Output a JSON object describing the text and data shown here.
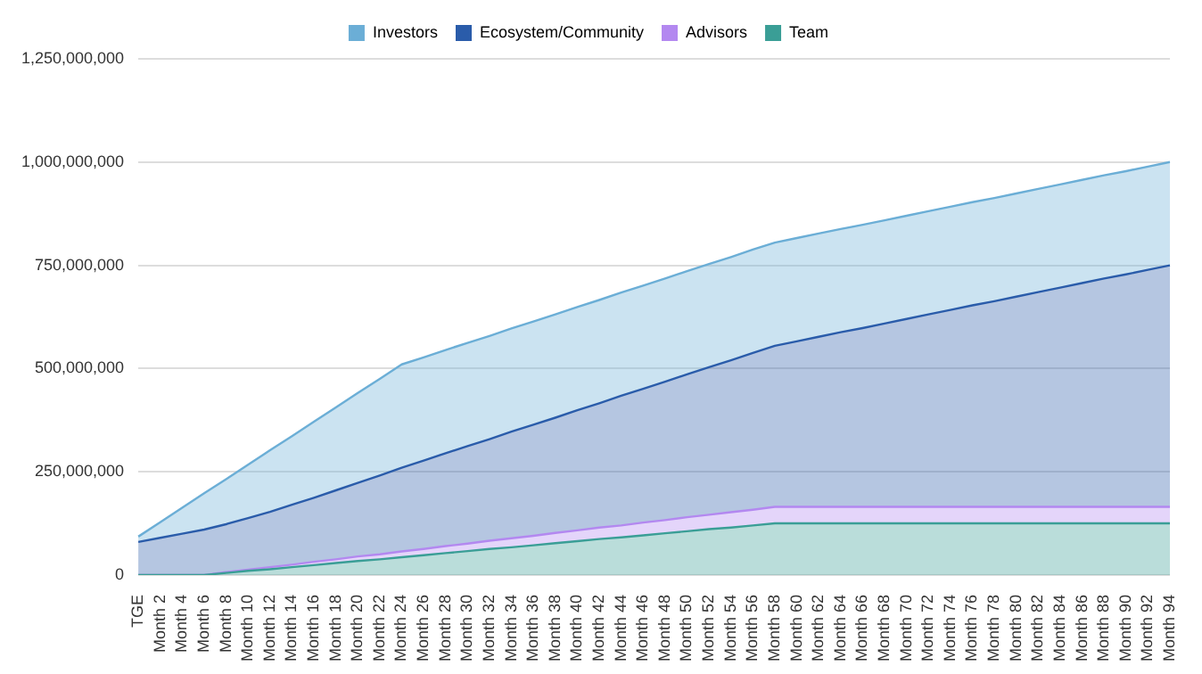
{
  "chart_data": {
    "type": "area",
    "stacked": true,
    "legend": "top",
    "grid": "y",
    "categories": [
      "TGE",
      "Month 2",
      "Month 4",
      "Month 6",
      "Month 8",
      "Month 10",
      "Month 12",
      "Month 14",
      "Month 16",
      "Month 18",
      "Month 20",
      "Month 22",
      "Month 24",
      "Month 26",
      "Month 28",
      "Month 30",
      "Month 32",
      "Month 34",
      "Month 36",
      "Month 38",
      "Month 40",
      "Month 42",
      "Month 44",
      "Month 46",
      "Month 48",
      "Month 50",
      "Month 52",
      "Month 54",
      "Month 56",
      "Month 58",
      "Month 60",
      "Month 62",
      "Month 64",
      "Month 66",
      "Month 68",
      "Month 70",
      "Month 72",
      "Month 74",
      "Month 76",
      "Month 78",
      "Month 80",
      "Month 82",
      "Month 84",
      "Month 86",
      "Month 88",
      "Month 90",
      "Month 92",
      "Month 94"
    ],
    "ylim": [
      0,
      1250000000
    ],
    "yticks": [
      0,
      {
        "value": 250000000,
        "label": "250,000,000"
      },
      {
        "value": 500000000,
        "label": "500,000,000"
      },
      {
        "value": 750000000,
        "label": "750,000,000"
      },
      {
        "value": 1000000000,
        "label": "1,000,000,000"
      },
      {
        "value": 1250000000,
        "label": "1,250,000,000"
      }
    ],
    "series": [
      {
        "name": "Team",
        "color": "#3a9e96",
        "values": [
          0,
          0,
          0,
          0,
          5000000,
          10000000,
          14000000,
          19000000,
          24000000,
          29000000,
          34000000,
          38000000,
          43000000,
          48000000,
          53000000,
          58000000,
          63000000,
          67000000,
          72000000,
          77000000,
          82000000,
          87000000,
          91000000,
          96000000,
          101000000,
          106000000,
          111000000,
          115000000,
          120000000,
          125000000,
          125000000,
          125000000,
          125000000,
          125000000,
          125000000,
          125000000,
          125000000,
          125000000,
          125000000,
          125000000,
          125000000,
          125000000,
          125000000,
          125000000,
          125000000,
          125000000,
          125000000,
          125000000
        ]
      },
      {
        "name": "Advisors",
        "color": "#b388f0",
        "values": [
          0,
          0,
          0,
          0,
          2000000,
          3000000,
          5000000,
          6000000,
          8000000,
          9000000,
          11000000,
          12000000,
          14000000,
          15000000,
          17000000,
          18000000,
          20000000,
          22000000,
          23000000,
          25000000,
          26000000,
          28000000,
          29000000,
          31000000,
          32000000,
          34000000,
          35000000,
          37000000,
          38000000,
          40000000,
          40000000,
          40000000,
          40000000,
          40000000,
          40000000,
          40000000,
          40000000,
          40000000,
          40000000,
          40000000,
          40000000,
          40000000,
          40000000,
          40000000,
          40000000,
          40000000,
          40000000,
          40000000
        ]
      },
      {
        "name": "Ecosystem/Community",
        "color": "#2a5caa",
        "values": [
          80000000,
          90000000,
          100000000,
          110000000,
          116000000,
          125000000,
          134000000,
          145000000,
          155000000,
          167000000,
          178000000,
          191000000,
          203000000,
          214000000,
          225000000,
          236000000,
          246000000,
          258000000,
          269000000,
          279000000,
          291000000,
          301000000,
          314000000,
          324000000,
          335000000,
          346000000,
          357000000,
          368000000,
          380000000,
          390000000,
          401000000,
          412000000,
          423000000,
          433000000,
          444000000,
          455000000,
          466000000,
          477000000,
          488000000,
          498000000,
          509000000,
          520000000,
          531000000,
          542000000,
          553000000,
          563000000,
          574000000,
          585000000
        ]
      },
      {
        "name": "Investors",
        "color": "#6baed6",
        "values": [
          13000000,
          38000000,
          63000000,
          88000000,
          109000000,
          129000000,
          149000000,
          166000000,
          184000000,
          201000000,
          218000000,
          234000000,
          250000000,
          250000000,
          250000000,
          250000000,
          250000000,
          250000000,
          250000000,
          250000000,
          250000000,
          250000000,
          250000000,
          250000000,
          250000000,
          250000000,
          250000000,
          250000000,
          250000000,
          250000000,
          250000000,
          250000000,
          250000000,
          250000000,
          250000000,
          250000000,
          250000000,
          250000000,
          250000000,
          250000000,
          250000000,
          250000000,
          250000000,
          250000000,
          250000000,
          250000000,
          250000000,
          250000000
        ]
      }
    ]
  }
}
